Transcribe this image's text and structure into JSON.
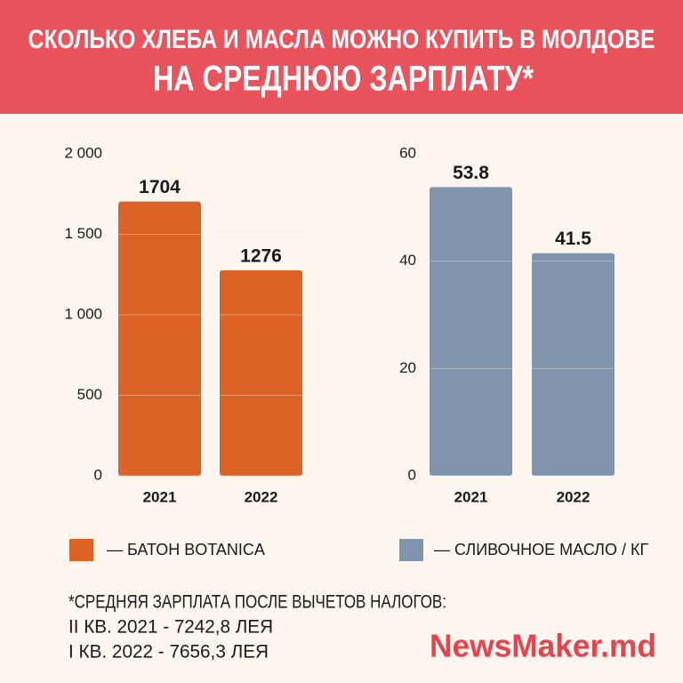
{
  "header": {
    "title_line1": "СКОЛЬКО ХЛЕБА И МАСЛА МОЖНО КУПИТЬ В МОЛДОВЕ",
    "title_line2": "НА СРЕДНЮЮ ЗАРПЛАТУ*"
  },
  "chart_data": [
    {
      "type": "bar",
      "categories": [
        "2021",
        "2022"
      ],
      "series": [
        {
          "name": "— БАТОН BOTANICA",
          "color": "#dc6226",
          "values": [
            1704,
            1276
          ]
        }
      ],
      "ylim": [
        0,
        2000
      ],
      "yticks": [
        0,
        500,
        {
          "value": 1000,
          "label": "1 000"
        },
        {
          "value": 1500,
          "label": "1 500"
        },
        {
          "value": 2000,
          "label": "2 000"
        }
      ],
      "grid": true
    },
    {
      "type": "bar",
      "categories": [
        "2021",
        "2022"
      ],
      "series": [
        {
          "name": "— СЛИВОЧНОЕ МАСЛО / КГ",
          "color": "#8094ad",
          "values": [
            53.8,
            41.5
          ]
        }
      ],
      "ylim": [
        0,
        60
      ],
      "yticks": [
        0,
        20,
        40,
        60
      ],
      "grid": true
    }
  ],
  "footnote": [
    "*СРЕДНЯЯ ЗАРПЛАТА ПОСЛЕ ВЫЧЕТОВ НАЛОГОВ:",
    "II КВ. 2021 - 7242,8 ЛЕЯ",
    "I КВ. 2022 - 7656,3 ЛЕЯ"
  ],
  "logo": "NewsMaker.md"
}
